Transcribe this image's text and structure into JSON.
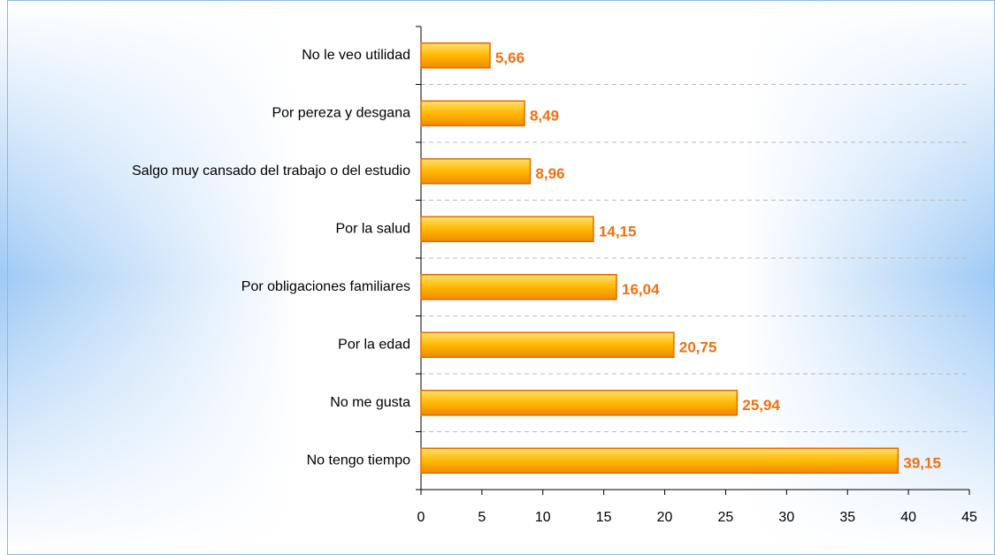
{
  "chart_data": {
    "type": "bar",
    "orientation": "horizontal",
    "categories": [
      "No le veo utilidad",
      "Por pereza y desgana",
      "Salgo muy cansado del trabajo o del estudio",
      "Por la salud",
      "Por obligaciones familiares",
      "Por la edad",
      "No me gusta",
      "No tengo tiempo"
    ],
    "values": [
      5.66,
      8.49,
      8.96,
      14.15,
      16.04,
      20.75,
      25.94,
      39.15
    ],
    "value_labels": [
      "5,66",
      "8,49",
      "8,96",
      "14,15",
      "16,04",
      "20,75",
      "25,94",
      "39,15"
    ],
    "color": "#ffb000",
    "xlim": [
      0,
      45
    ],
    "xticks": [
      0,
      5,
      10,
      15,
      20,
      25,
      30,
      35,
      40,
      45
    ],
    "grid": true
  }
}
